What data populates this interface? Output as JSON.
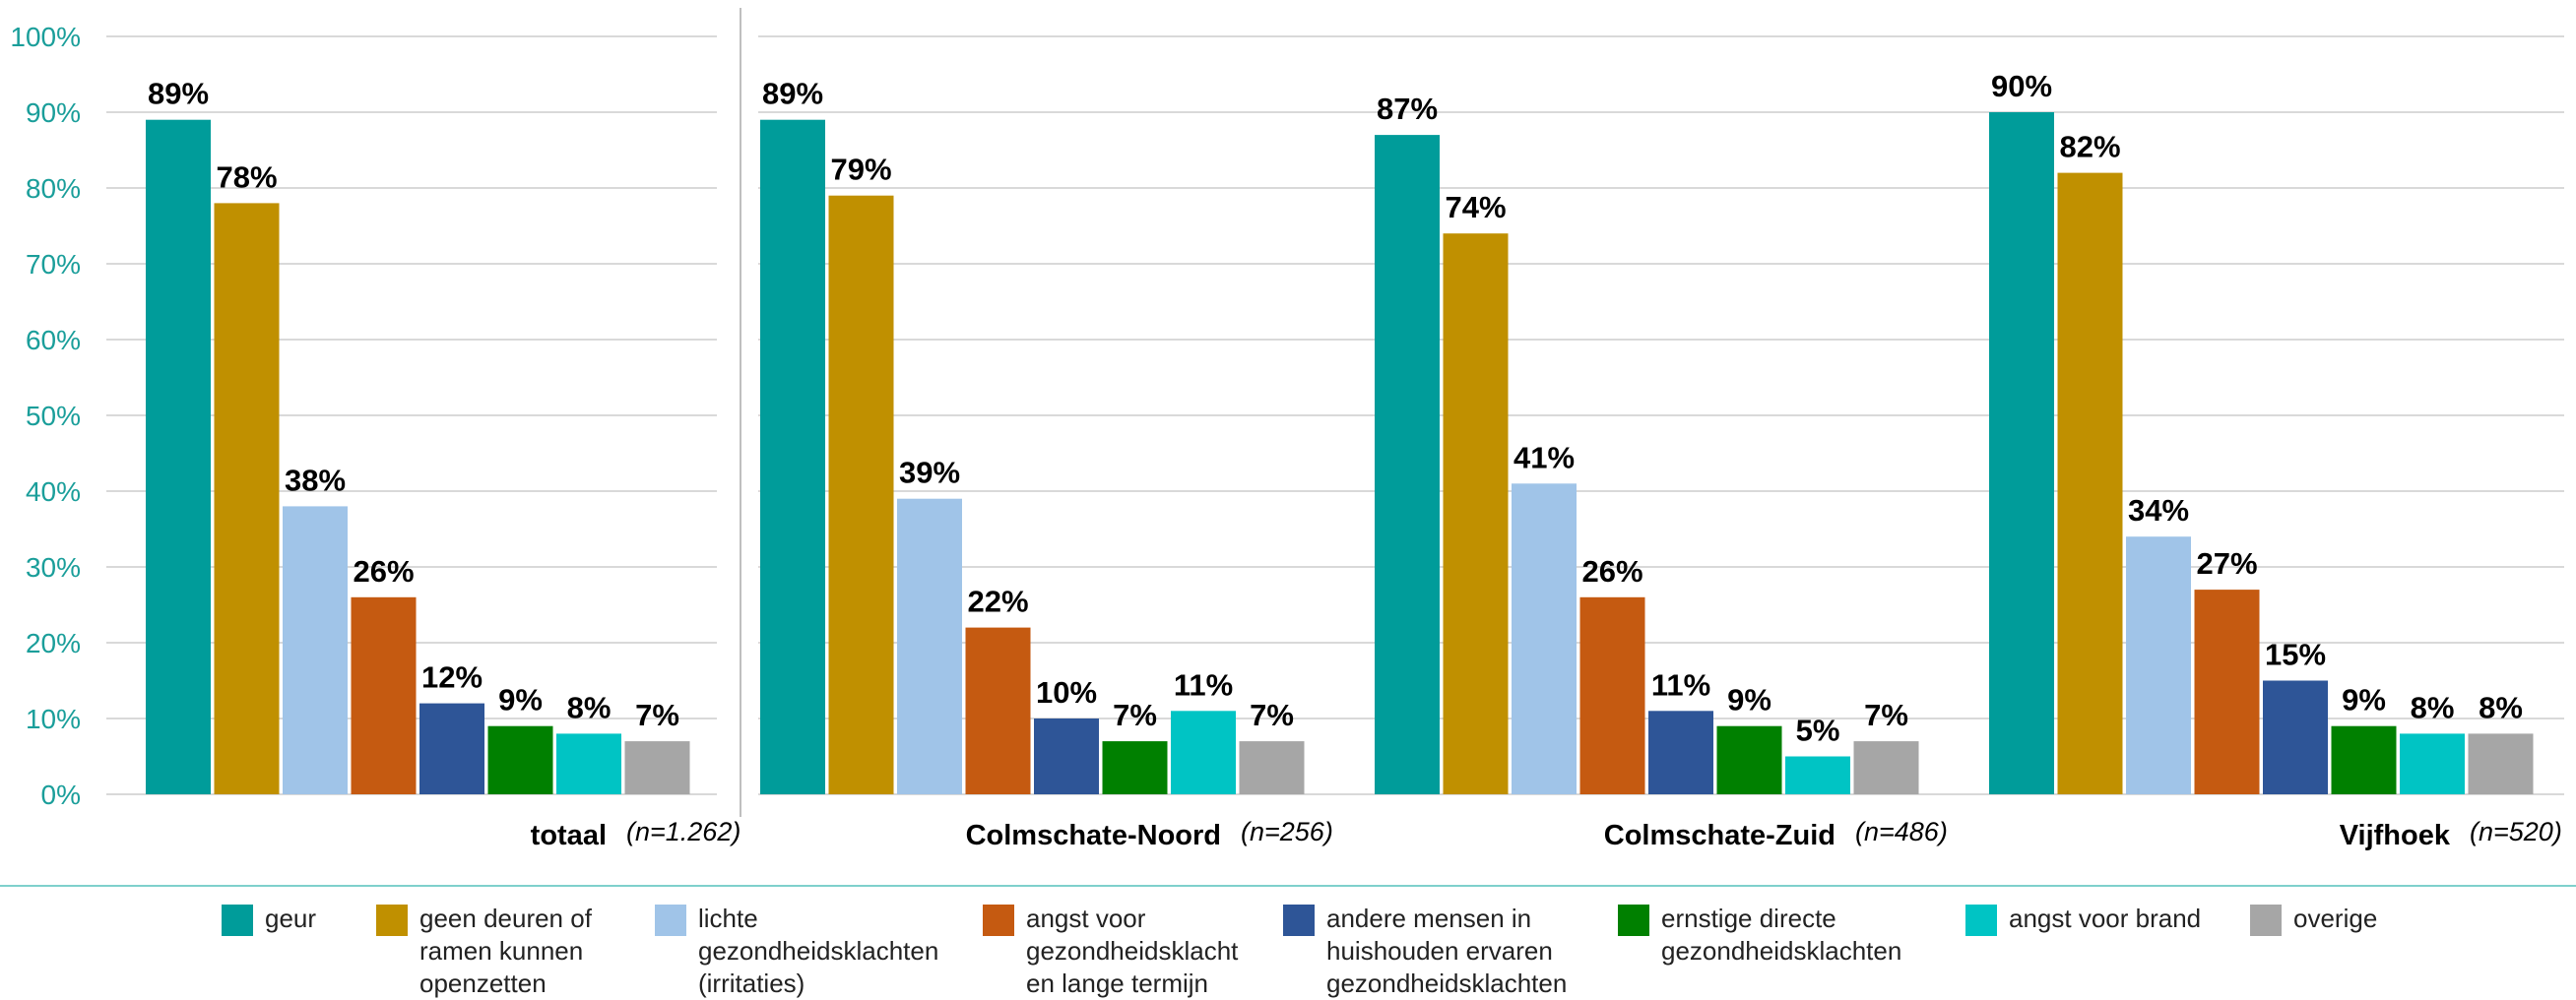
{
  "chart_data": {
    "type": "bar",
    "y_axis": {
      "ticks": [
        "0%",
        "10%",
        "20%",
        "30%",
        "40%",
        "50%",
        "60%",
        "70%",
        "80%",
        "90%",
        "100%"
      ],
      "ylim": [
        0,
        100
      ],
      "unit": "%"
    },
    "grid": true,
    "legend_position": "bottom",
    "groups": [
      {
        "name": "totaal",
        "n": "(n=1.262)",
        "values": [
          89,
          78,
          38,
          26,
          12,
          9,
          8,
          7
        ],
        "labels": [
          "89%",
          "78%",
          "38%",
          "26%",
          "12%",
          "9%",
          "8%",
          "7%"
        ]
      },
      {
        "name": "Colmschate-Noord",
        "n": "(n=256)",
        "values": [
          89,
          79,
          39,
          22,
          10,
          7,
          11,
          7
        ],
        "labels": [
          "89%",
          "79%",
          "39%",
          "22%",
          "10%",
          "7%",
          "11%",
          "7%"
        ]
      },
      {
        "name": "Colmschate-Zuid",
        "n": "(n=486)",
        "values": [
          87,
          74,
          41,
          26,
          11,
          9,
          5,
          7
        ],
        "labels": [
          "87%",
          "74%",
          "41%",
          "26%",
          "11%",
          "9%",
          "5%",
          "7%"
        ]
      },
      {
        "name": "Vijfhoek",
        "n": "(n=520)",
        "values": [
          90,
          82,
          34,
          27,
          15,
          9,
          8,
          8
        ],
        "labels": [
          "90%",
          "82%",
          "34%",
          "27%",
          "15%",
          "9%",
          "8%",
          "8%"
        ]
      }
    ],
    "series": [
      {
        "name": "geur",
        "color": "#009c9a"
      },
      {
        "name": "geen deuren of\nramen kunnen\nopenzetten",
        "color": "#c09000"
      },
      {
        "name": "lichte\ngezondheidsklachten\n(irritaties)",
        "color": "#a0c4e8"
      },
      {
        "name": "angst voor\ngezondheidsklacht\nen lange termijn",
        "color": "#c55a11"
      },
      {
        "name": "andere mensen in\nhuishouden ervaren\ngezondheidsklachten",
        "color": "#2e5597"
      },
      {
        "name": "ernstige directe\ngezondheidsklachten",
        "color": "#008000"
      },
      {
        "name": "angst voor brand",
        "color": "#00c4c4"
      },
      {
        "name": "overige",
        "color": "#a6a6a6"
      }
    ],
    "colors": {
      "axis_text": "#1a9e9a",
      "gridline": "#d9d9d9",
      "separator": "#7fd0cc"
    }
  }
}
